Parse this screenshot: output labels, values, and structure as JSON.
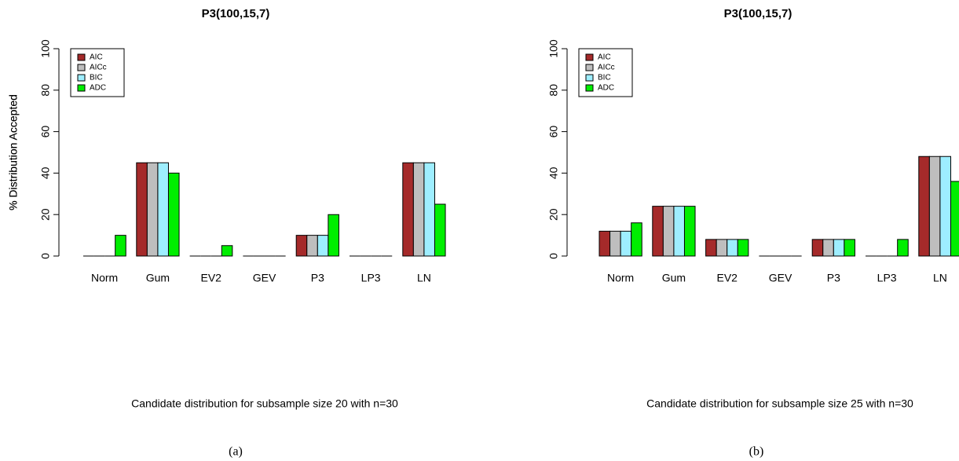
{
  "chart_data": [
    {
      "type": "bar",
      "title": "P3(100,15,7)",
      "x_label": "Candidate distribution for subsample size 20 with n=30",
      "y_label": "% Distribution Accepted",
      "caption": "(a)",
      "categories": [
        "Norm",
        "Gum",
        "EV2",
        "GEV",
        "P3",
        "LP3",
        "LN"
      ],
      "series": [
        {
          "name": "AIC",
          "color": "#a52a2a",
          "values": [
            0,
            45,
            0,
            0,
            10,
            0,
            45
          ]
        },
        {
          "name": "AICc",
          "color": "#bebebe",
          "values": [
            0,
            45,
            0,
            0,
            10,
            0,
            45
          ]
        },
        {
          "name": "BIC",
          "color": "#9eeeff",
          "values": [
            0,
            45,
            0,
            0,
            10,
            0,
            45
          ]
        },
        {
          "name": "ADC",
          "color": "#00ee00",
          "values": [
            10,
            40,
            5,
            0,
            20,
            0,
            25
          ]
        }
      ],
      "ylim": [
        0,
        100
      ],
      "yticks": [
        0,
        20,
        40,
        60,
        80,
        100
      ],
      "legend": "topleft"
    },
    {
      "type": "bar",
      "title": "P3(100,15,7)",
      "x_label": "Candidate distribution for subsample size 25 with n=30",
      "y_label": "% Distribution Accepted",
      "caption": "(b)",
      "categories": [
        "Norm",
        "Gum",
        "EV2",
        "GEV",
        "P3",
        "LP3",
        "LN"
      ],
      "series": [
        {
          "name": "AIC",
          "color": "#a52a2a",
          "values": [
            12,
            24,
            8,
            0,
            8,
            0,
            48
          ]
        },
        {
          "name": "AICc",
          "color": "#bebebe",
          "values": [
            12,
            24,
            8,
            0,
            8,
            0,
            48
          ]
        },
        {
          "name": "BIC",
          "color": "#9eeeff",
          "values": [
            12,
            24,
            8,
            0,
            8,
            0,
            48
          ]
        },
        {
          "name": "ADC",
          "color": "#00ee00",
          "values": [
            16,
            24,
            8,
            0,
            8,
            8,
            36
          ]
        }
      ],
      "ylim": [
        0,
        100
      ],
      "yticks": [
        0,
        20,
        40,
        60,
        80,
        100
      ],
      "legend": "topleft"
    }
  ]
}
